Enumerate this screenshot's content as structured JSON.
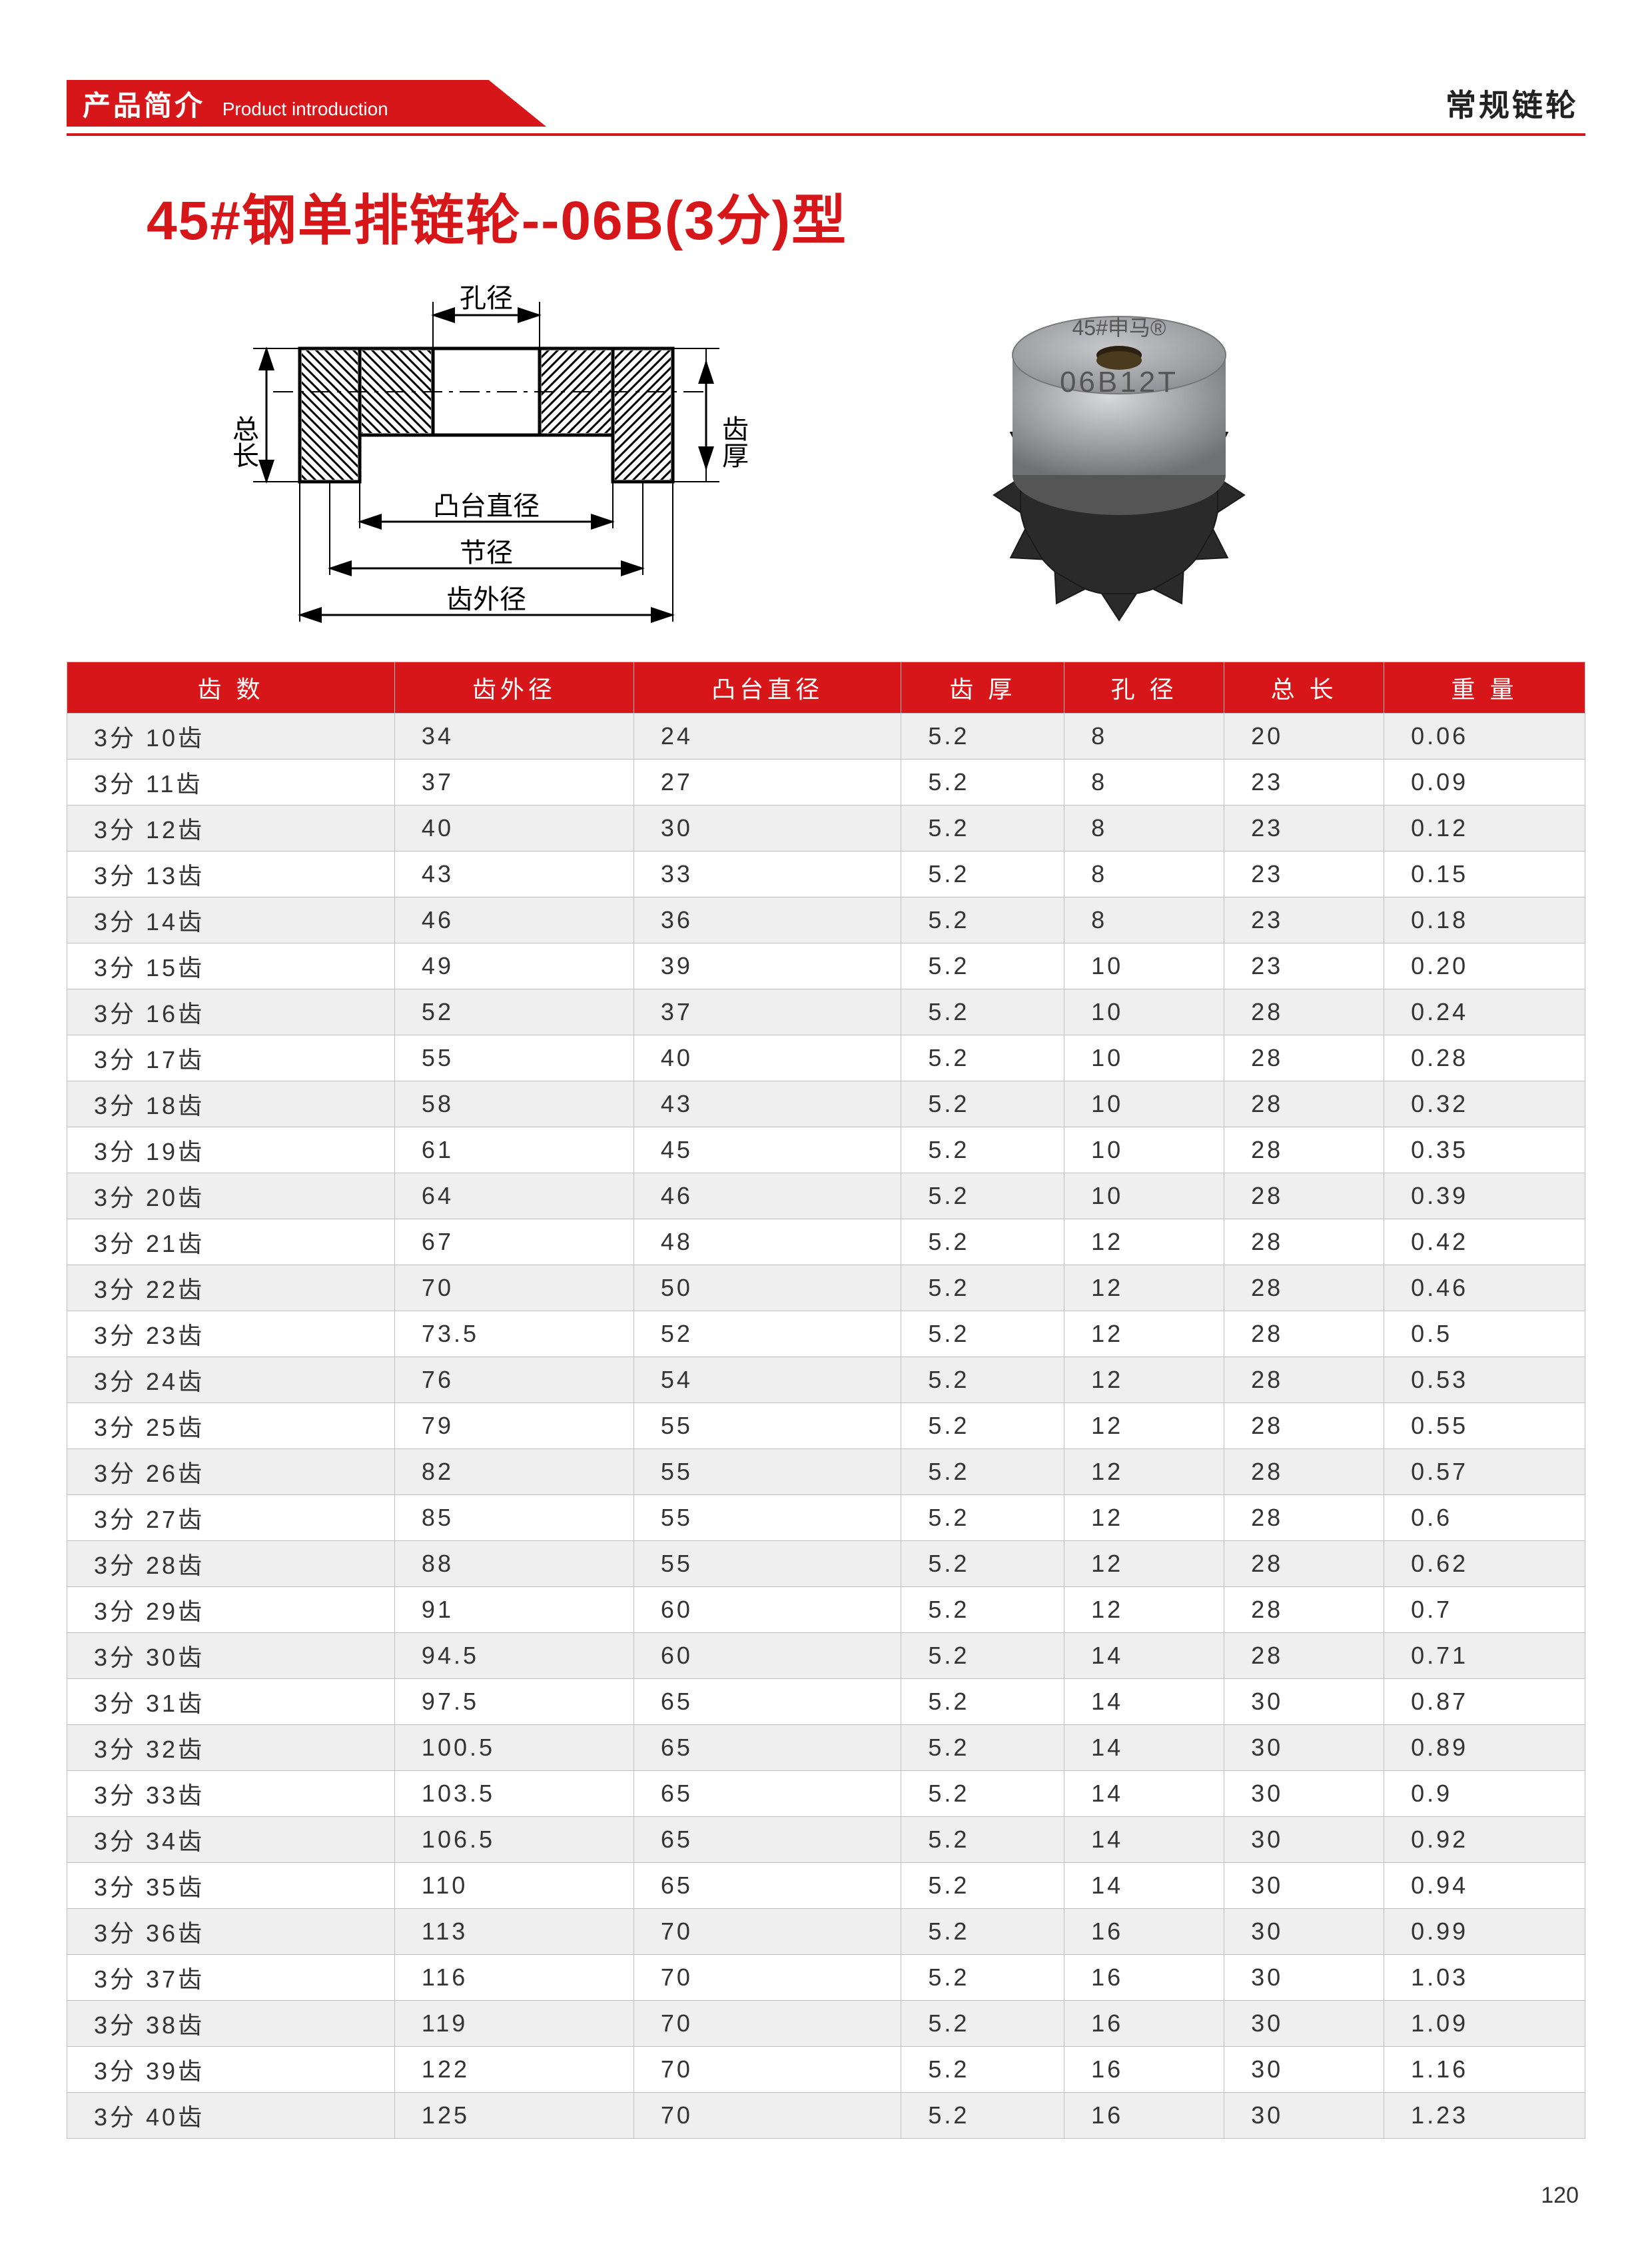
{
  "header": {
    "banner_cn": "产品简介",
    "banner_en": "Product introduction",
    "right_label": "常规链轮"
  },
  "title": "45#钢单排链轮--06B(3分)型",
  "diagram": {
    "labels": {
      "bore": "孔径",
      "tooth_thickness": "齿厚",
      "total_length": "总长",
      "hub_dia": "凸台直径",
      "pitch_dia": "节径",
      "outer_dia": "齿外径"
    },
    "hatch_color": "#000000",
    "line_color": "#000000",
    "text_color": "#000000"
  },
  "photo": {
    "top_text": "45#申马®",
    "bottom_text": "06B12T",
    "hub_color": "#8b8d90",
    "hub_face_color": "#a9abae",
    "teeth_color": "#2a2a2a",
    "bore_color": "#3b2e16"
  },
  "table": {
    "header_bg": "#d71619",
    "header_fg": "#ffffff",
    "row_alt_bg": "#efefef",
    "border_color": "#bfbfbf",
    "columns": [
      "齿 数",
      "齿外径",
      "凸台直径",
      "齿 厚",
      "孔 径",
      "总 长",
      "重 量"
    ],
    "rows": [
      [
        "3分 10齿",
        "34",
        "24",
        "5.2",
        "8",
        "20",
        "0.06"
      ],
      [
        "3分 11齿",
        "37",
        "27",
        "5.2",
        "8",
        "23",
        "0.09"
      ],
      [
        "3分 12齿",
        "40",
        "30",
        "5.2",
        "8",
        "23",
        "0.12"
      ],
      [
        "3分 13齿",
        "43",
        "33",
        "5.2",
        "8",
        "23",
        "0.15"
      ],
      [
        "3分 14齿",
        "46",
        "36",
        "5.2",
        "8",
        "23",
        "0.18"
      ],
      [
        "3分 15齿",
        "49",
        "39",
        "5.2",
        "10",
        "23",
        "0.20"
      ],
      [
        "3分 16齿",
        "52",
        "37",
        "5.2",
        "10",
        "28",
        "0.24"
      ],
      [
        "3分 17齿",
        "55",
        "40",
        "5.2",
        "10",
        "28",
        "0.28"
      ],
      [
        "3分 18齿",
        "58",
        "43",
        "5.2",
        "10",
        "28",
        "0.32"
      ],
      [
        "3分 19齿",
        "61",
        "45",
        "5.2",
        "10",
        "28",
        "0.35"
      ],
      [
        "3分 20齿",
        "64",
        "46",
        "5.2",
        "10",
        "28",
        "0.39"
      ],
      [
        "3分 21齿",
        "67",
        "48",
        "5.2",
        "12",
        "28",
        "0.42"
      ],
      [
        "3分 22齿",
        "70",
        "50",
        "5.2",
        "12",
        "28",
        "0.46"
      ],
      [
        "3分 23齿",
        "73.5",
        "52",
        "5.2",
        "12",
        "28",
        "0.5"
      ],
      [
        "3分 24齿",
        "76",
        "54",
        "5.2",
        "12",
        "28",
        "0.53"
      ],
      [
        "3分 25齿",
        "79",
        "55",
        "5.2",
        "12",
        "28",
        "0.55"
      ],
      [
        "3分 26齿",
        "82",
        "55",
        "5.2",
        "12",
        "28",
        "0.57"
      ],
      [
        "3分 27齿",
        "85",
        "55",
        "5.2",
        "12",
        "28",
        "0.6"
      ],
      [
        "3分 28齿",
        "88",
        "55",
        "5.2",
        "12",
        "28",
        "0.62"
      ],
      [
        "3分 29齿",
        "91",
        "60",
        "5.2",
        "12",
        "28",
        "0.7"
      ],
      [
        "3分 30齿",
        "94.5",
        "60",
        "5.2",
        "14",
        "28",
        "0.71"
      ],
      [
        "3分 31齿",
        "97.5",
        "65",
        "5.2",
        "14",
        "30",
        "0.87"
      ],
      [
        "3分 32齿",
        "100.5",
        "65",
        "5.2",
        "14",
        "30",
        "0.89"
      ],
      [
        "3分 33齿",
        "103.5",
        "65",
        "5.2",
        "14",
        "30",
        "0.9"
      ],
      [
        "3分 34齿",
        "106.5",
        "65",
        "5.2",
        "14",
        "30",
        "0.92"
      ],
      [
        "3分 35齿",
        "110",
        "65",
        "5.2",
        "14",
        "30",
        "0.94"
      ],
      [
        "3分 36齿",
        "113",
        "70",
        "5.2",
        "16",
        "30",
        "0.99"
      ],
      [
        "3分 37齿",
        "116",
        "70",
        "5.2",
        "16",
        "30",
        "1.03"
      ],
      [
        "3分 38齿",
        "119",
        "70",
        "5.2",
        "16",
        "30",
        "1.09"
      ],
      [
        "3分 39齿",
        "122",
        "70",
        "5.2",
        "16",
        "30",
        "1.16"
      ],
      [
        "3分 40齿",
        "125",
        "70",
        "5.2",
        "16",
        "30",
        "1.23"
      ]
    ]
  },
  "page_number": "120"
}
